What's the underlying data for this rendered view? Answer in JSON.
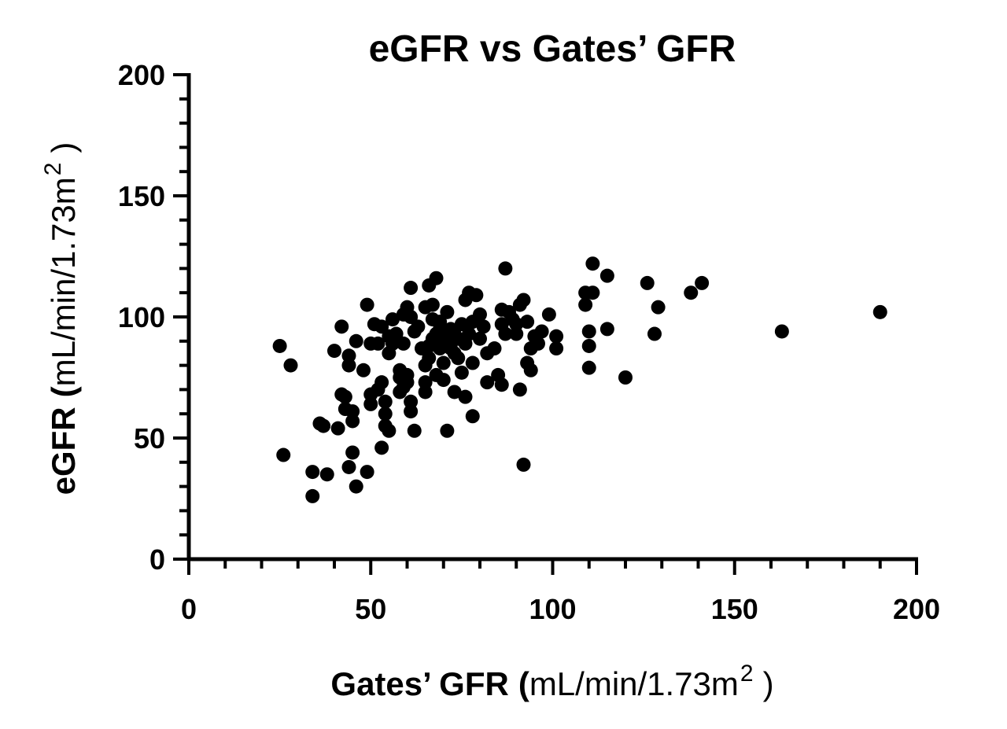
{
  "chart_data": {
    "type": "scatter",
    "title": "eGFR vs Gates’ GFR",
    "xlabel": {
      "main": "Gates’ GFR",
      "open": "(",
      "unit": "mL/min/1.73m",
      "sup": "2",
      "close": ")"
    },
    "ylabel": {
      "main": "eGFR",
      "open": "(",
      "unit": "mL/min/1.73m",
      "sup": "2",
      "close": ")"
    },
    "xlim": [
      0,
      200
    ],
    "ylim": [
      0,
      200
    ],
    "xticks": [
      0,
      50,
      100,
      150,
      200
    ],
    "yticks": [
      0,
      50,
      100,
      150,
      200
    ],
    "grid": false,
    "marker_color": "#000000",
    "points": [
      [
        25,
        88
      ],
      [
        28,
        80
      ],
      [
        26,
        43
      ],
      [
        34,
        36
      ],
      [
        34,
        26
      ],
      [
        36,
        56
      ],
      [
        37,
        55
      ],
      [
        38,
        35
      ],
      [
        40,
        86
      ],
      [
        41,
        54
      ],
      [
        42,
        96
      ],
      [
        42,
        68
      ],
      [
        43,
        67
      ],
      [
        43,
        62
      ],
      [
        44,
        38
      ],
      [
        44,
        80
      ],
      [
        44,
        84
      ],
      [
        45,
        57
      ],
      [
        45,
        61
      ],
      [
        45,
        44
      ],
      [
        46,
        90
      ],
      [
        46,
        30
      ],
      [
        48,
        78
      ],
      [
        49,
        36
      ],
      [
        49,
        105
      ],
      [
        50,
        89
      ],
      [
        50,
        64
      ],
      [
        50,
        68
      ],
      [
        51,
        97
      ],
      [
        52,
        70
      ],
      [
        52,
        89
      ],
      [
        53,
        96
      ],
      [
        53,
        46
      ],
      [
        53,
        73
      ],
      [
        54,
        55
      ],
      [
        54,
        60
      ],
      [
        54,
        65
      ],
      [
        55,
        92
      ],
      [
        55,
        53
      ],
      [
        55,
        85
      ],
      [
        56,
        99
      ],
      [
        56,
        89
      ],
      [
        57,
        93
      ],
      [
        58,
        75
      ],
      [
        58,
        78
      ],
      [
        58,
        69
      ],
      [
        59,
        89
      ],
      [
        59,
        71
      ],
      [
        59,
        101
      ],
      [
        60,
        76
      ],
      [
        60,
        73
      ],
      [
        60,
        104
      ],
      [
        61,
        100
      ],
      [
        61,
        112
      ],
      [
        61,
        65
      ],
      [
        61,
        61
      ],
      [
        62,
        53
      ],
      [
        62,
        94
      ],
      [
        63,
        96
      ],
      [
        64,
        87
      ],
      [
        65,
        80
      ],
      [
        65,
        104
      ],
      [
        65,
        73
      ],
      [
        65,
        69
      ],
      [
        66,
        113
      ],
      [
        66,
        88
      ],
      [
        66,
        83
      ],
      [
        67,
        91
      ],
      [
        67,
        99
      ],
      [
        67,
        105
      ],
      [
        68,
        116
      ],
      [
        68,
        93
      ],
      [
        68,
        76
      ],
      [
        69,
        87
      ],
      [
        69,
        95
      ],
      [
        69,
        98
      ],
      [
        70,
        89
      ],
      [
        70,
        81
      ],
      [
        70,
        74
      ],
      [
        71,
        102
      ],
      [
        71,
        53
      ],
      [
        71,
        91
      ],
      [
        72,
        87
      ],
      [
        72,
        95
      ],
      [
        73,
        85
      ],
      [
        73,
        93
      ],
      [
        73,
        69
      ],
      [
        74,
        91
      ],
      [
        74,
        83
      ],
      [
        75,
        77
      ],
      [
        75,
        97
      ],
      [
        76,
        89
      ],
      [
        76,
        107
      ],
      [
        76,
        67
      ],
      [
        77,
        110
      ],
      [
        77,
        93
      ],
      [
        78,
        81
      ],
      [
        78,
        59
      ],
      [
        78,
        98
      ],
      [
        79,
        109
      ],
      [
        80,
        91
      ],
      [
        80,
        101
      ],
      [
        81,
        96
      ],
      [
        82,
        73
      ],
      [
        82,
        85
      ],
      [
        84,
        87
      ],
      [
        85,
        76
      ],
      [
        86,
        103
      ],
      [
        86,
        97
      ],
      [
        86,
        72
      ],
      [
        87,
        120
      ],
      [
        87,
        93
      ],
      [
        88,
        102
      ],
      [
        89,
        99
      ],
      [
        90,
        93
      ],
      [
        90,
        97
      ],
      [
        91,
        105
      ],
      [
        91,
        70
      ],
      [
        92,
        107
      ],
      [
        92,
        39
      ],
      [
        93,
        81
      ],
      [
        93,
        98
      ],
      [
        94,
        87
      ],
      [
        94,
        78
      ],
      [
        95,
        92
      ],
      [
        96,
        89
      ],
      [
        97,
        94
      ],
      [
        99,
        101
      ],
      [
        101,
        87
      ],
      [
        101,
        92
      ],
      [
        109,
        105
      ],
      [
        109,
        110
      ],
      [
        110,
        79
      ],
      [
        110,
        88
      ],
      [
        110,
        94
      ],
      [
        111,
        122
      ],
      [
        111,
        110
      ],
      [
        115,
        117
      ],
      [
        115,
        95
      ],
      [
        120,
        75
      ],
      [
        126,
        114
      ],
      [
        128,
        93
      ],
      [
        129,
        104
      ],
      [
        138,
        110
      ],
      [
        141,
        114
      ],
      [
        163,
        94
      ],
      [
        190,
        102
      ]
    ]
  }
}
